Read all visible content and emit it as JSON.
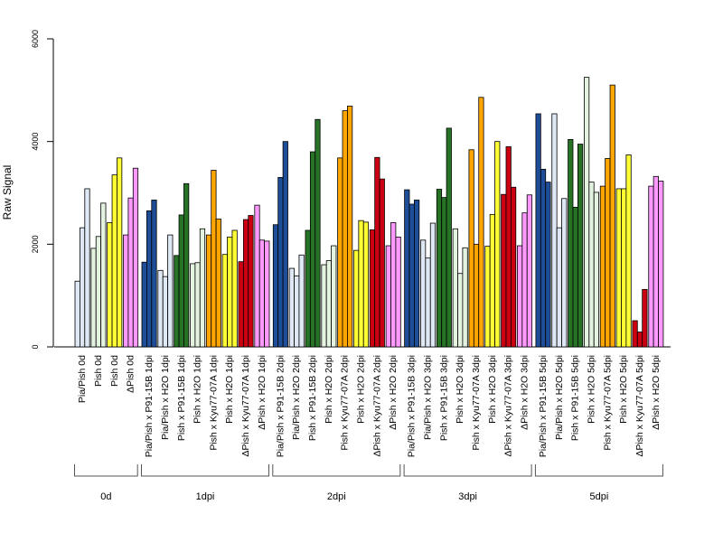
{
  "chart_data": {
    "type": "bar",
    "ylabel": "Raw Signal",
    "ylim": [
      0,
      6000
    ],
    "yticks": [
      0,
      2000,
      4000,
      6000
    ],
    "grid": false,
    "bar_edge_color": "#000000",
    "groups": [
      {
        "label": "0d",
        "categories": [
          "Pia/Pish 0d",
          "Pish 0d",
          "Pish 0d",
          "ΔPish 0d"
        ],
        "colors": [
          "#dfe9f5",
          "#e4f2e0",
          "#ffff33",
          "#ff99ff"
        ],
        "values": [
          [
            1280,
            2320,
            3080
          ],
          [
            1920,
            2150,
            2800
          ],
          [
            2420,
            3350,
            3680
          ],
          [
            2180,
            2900,
            3480
          ]
        ]
      },
      {
        "label": "1dpi",
        "categories": [
          "Pia/Pish x P91-15B 1dpi",
          "Pia/Pish x H2O 1dpi",
          "Pish x P91-15B 1dpi",
          "Pish x H2O 1dpi",
          "Pish x Kyu77-07A 1dpi",
          "Pish x H2O 1dpi",
          "ΔPish x Kyu77-07A 1dpi",
          "ΔPish x H2O 1dpi"
        ],
        "colors": [
          "#1f4e99",
          "#dfe9f5",
          "#267326",
          "#e4f2e0",
          "#ffa500",
          "#ffff33",
          "#cc0011",
          "#ff99ff"
        ],
        "values": [
          [
            1650,
            2650,
            2860
          ],
          [
            1490,
            1370,
            2180
          ],
          [
            1780,
            2570,
            3180
          ],
          [
            1620,
            1640,
            2300
          ],
          [
            2180,
            3440,
            2490
          ],
          [
            1800,
            2140,
            2270
          ],
          [
            1660,
            2480,
            2560
          ],
          [
            2760,
            2080,
            2060
          ]
        ]
      },
      {
        "label": "2dpi",
        "categories": [
          "Pia/Pish x P91-15B 2dpi",
          "Pia/Pish x H2O 2dpi",
          "Pish x P91-15B 2dpi",
          "Pish x H2O 2dpi",
          "Pish x Kyu77-07A 2dpi",
          "Pish x H2O 2dpi",
          "ΔPish x Kyu77-07A 2dpi",
          "ΔPish x H2O 2dpi"
        ],
        "colors": [
          "#1f4e99",
          "#dfe9f5",
          "#267326",
          "#e4f2e0",
          "#ffa500",
          "#ffff33",
          "#cc0011",
          "#ff99ff"
        ],
        "values": [
          [
            2380,
            3300,
            4000
          ],
          [
            1530,
            1380,
            1790
          ],
          [
            2270,
            3800,
            4430
          ],
          [
            1600,
            1680,
            1970
          ],
          [
            3680,
            4600,
            4690
          ],
          [
            1880,
            2460,
            2430
          ],
          [
            2280,
            3690,
            3270
          ],
          [
            1970,
            2420,
            2140
          ]
        ]
      },
      {
        "label": "3dpi",
        "categories": [
          "Pia/Pish x P91-15B 3dpi",
          "Pia/Pish x H2O 3dpi",
          "Pish x P91-15B 3dpi",
          "Pish x H2O 3dpi",
          "Pish x Kyu77-07A 3dpi",
          "Pish x H2O 3dpi",
          "ΔPish x Kyu77-07A 3dpi",
          "ΔPish x H2O 3dpi"
        ],
        "colors": [
          "#1f4e99",
          "#dfe9f5",
          "#267326",
          "#e4f2e0",
          "#ffa500",
          "#ffff33",
          "#cc0011",
          "#ff99ff"
        ],
        "values": [
          [
            3060,
            2780,
            2860
          ],
          [
            2080,
            1730,
            2410
          ],
          [
            3070,
            2910,
            4260
          ],
          [
            2300,
            1430,
            1930
          ],
          [
            3840,
            2000,
            4860
          ],
          [
            1960,
            2580,
            4000
          ],
          [
            2970,
            3900,
            3110
          ],
          [
            1970,
            2610,
            2960
          ]
        ]
      },
      {
        "label": "5dpi",
        "categories": [
          "Pia/Pish x P91-15B 5dpi",
          "Pia/Pish x H2O 5dpi",
          "Pish x P91-15B 5dpi",
          "Pish x H2O 5dpi",
          "Pish x Kyu77-07A 5dpi",
          "Pish x H2O 5dpi",
          "ΔPish x Kyu77-07A 5dpi",
          "ΔPish x H2O 5dpi"
        ],
        "colors": [
          "#1f4e99",
          "#dfe9f5",
          "#267326",
          "#e4f2e0",
          "#ffa500",
          "#ffff33",
          "#cc0011",
          "#ff99ff"
        ],
        "values": [
          [
            4540,
            3460,
            3210
          ],
          [
            4540,
            2320,
            2890
          ],
          [
            4040,
            2720,
            3950
          ],
          [
            5250,
            3210,
            3010
          ],
          [
            3130,
            3670,
            5100
          ],
          [
            3080,
            3080,
            3740
          ],
          [
            510,
            290,
            1120
          ],
          [
            3130,
            3320,
            3230
          ]
        ]
      }
    ]
  }
}
